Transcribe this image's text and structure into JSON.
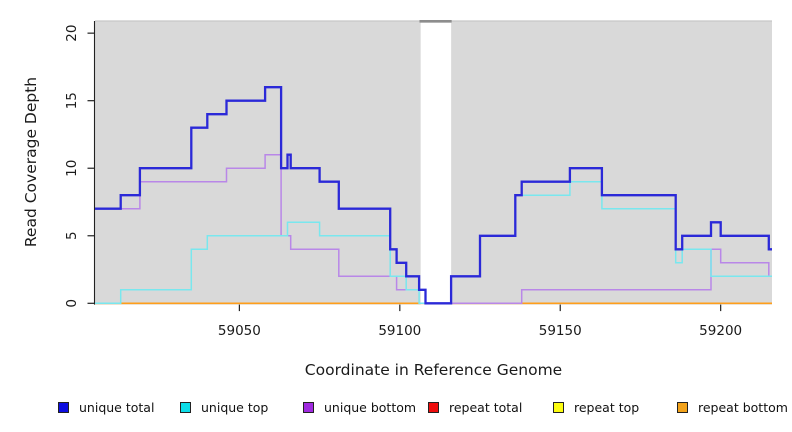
{
  "chart_data": {
    "type": "line",
    "step_mode": "post",
    "title": "",
    "xlabel": "Coordinate in Reference Genome",
    "ylabel": "Read Coverage Depth",
    "xlim": [
      59005,
      59216
    ],
    "ylim": [
      0,
      20.9
    ],
    "x_ticks": [
      59050,
      59100,
      59150,
      59200
    ],
    "y_ticks": [
      0,
      5,
      10,
      15,
      20
    ],
    "grid": false,
    "legend_position": "bottom",
    "plot_bg_color": "#d9d9d9",
    "axis_color": "#222222",
    "tick_label_color": "#1a1a1a",
    "top_border_color": "#c7c7c7",
    "gap_band": {
      "x_start": 59106.5,
      "x_end": 59116,
      "fill": "#ffffff",
      "top_cap_color": "#8d8d8d"
    },
    "series": [
      {
        "name": "repeat total",
        "line_color": "#e60000",
        "line_width": 1.2,
        "steps": [
          [
            59005,
            0
          ]
        ]
      },
      {
        "name": "repeat top",
        "line_color": "#ffff00",
        "line_width": 1.2,
        "steps": [
          [
            59005,
            0
          ]
        ]
      },
      {
        "name": "repeat bottom",
        "line_color": "#ff9e1b",
        "line_width": 1.7,
        "steps": [
          [
            59005,
            0
          ]
        ]
      },
      {
        "name": "unique bottom",
        "line_color": "#b987e8",
        "line_width": 1.5,
        "steps": [
          [
            59005,
            7
          ],
          [
            59019,
            9
          ],
          [
            59046,
            10
          ],
          [
            59058,
            11
          ],
          [
            59063,
            5
          ],
          [
            59066,
            4
          ],
          [
            59081,
            2
          ],
          [
            59099,
            1
          ],
          [
            59108,
            0
          ],
          [
            59138,
            1
          ],
          [
            59197,
            4
          ],
          [
            59200,
            3
          ],
          [
            59215,
            2
          ]
        ]
      },
      {
        "name": "unique top",
        "line_color": "#79e7ee",
        "line_width": 1.5,
        "steps": [
          [
            59005,
            0
          ],
          [
            59013,
            1
          ],
          [
            59035,
            4
          ],
          [
            59040,
            5
          ],
          [
            59065,
            6
          ],
          [
            59075,
            5
          ],
          [
            59097,
            2
          ],
          [
            59102,
            1
          ],
          [
            59106,
            0
          ],
          [
            59116,
            2
          ],
          [
            59125,
            5
          ],
          [
            59136,
            8
          ],
          [
            59153,
            9
          ],
          [
            59163,
            7
          ],
          [
            59186,
            3
          ],
          [
            59188,
            4
          ],
          [
            59197,
            2
          ]
        ]
      },
      {
        "name": "unique total",
        "line_color": "#2b29d8",
        "line_width": 2.3,
        "steps": [
          [
            59005,
            7
          ],
          [
            59013,
            8
          ],
          [
            59019,
            10
          ],
          [
            59035,
            13
          ],
          [
            59040,
            14
          ],
          [
            59046,
            15
          ],
          [
            59058,
            16
          ],
          [
            59063,
            10
          ],
          [
            59065,
            11
          ],
          [
            59066,
            10
          ],
          [
            59075,
            9
          ],
          [
            59081,
            7
          ],
          [
            59097,
            4
          ],
          [
            59099,
            3
          ],
          [
            59102,
            2
          ],
          [
            59106,
            1
          ],
          [
            59108,
            0
          ],
          [
            59116,
            2
          ],
          [
            59125,
            5
          ],
          [
            59136,
            8
          ],
          [
            59138,
            9
          ],
          [
            59153,
            10
          ],
          [
            59163,
            8
          ],
          [
            59186,
            4
          ],
          [
            59188,
            5
          ],
          [
            59197,
            6
          ],
          [
            59200,
            5
          ],
          [
            59215,
            4
          ]
        ]
      }
    ],
    "legend": [
      {
        "label": "unique total",
        "color": "#0d0de0"
      },
      {
        "label": "unique top",
        "color": "#0cdde8"
      },
      {
        "label": "unique bottom",
        "color": "#a02ae0"
      },
      {
        "label": "repeat total",
        "color": "#ee0d0d"
      },
      {
        "label": "repeat top",
        "color": "#fcfc10"
      },
      {
        "label": "repeat bottom",
        "color": "#f2a21a"
      }
    ]
  }
}
